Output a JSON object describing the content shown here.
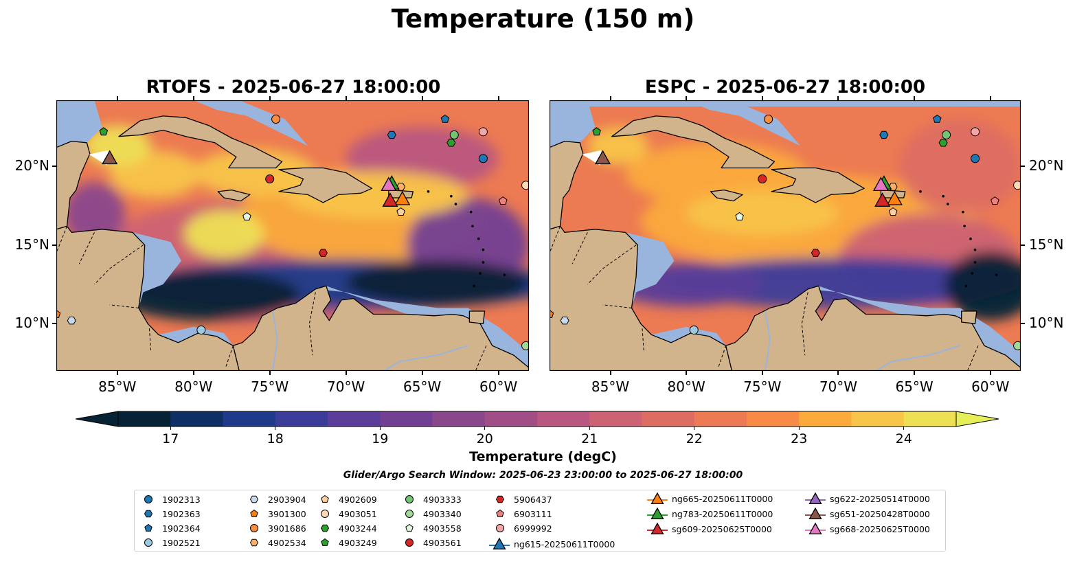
{
  "figure": {
    "title": "Temperature (150 m)",
    "search_window": "Glider/Argo Search Window: 2025-06-23 23:00:00 to 2025-06-27 18:00:00"
  },
  "panels": [
    {
      "title": "RTOFS - 2025-06-27 18:00:00"
    },
    {
      "title": "ESPC - 2025-06-27 18:00:00"
    }
  ],
  "axes": {
    "x_ticks": [
      "85°W",
      "80°W",
      "75°W",
      "70°W",
      "65°W",
      "60°W"
    ],
    "x_values": [
      -85,
      -80,
      -75,
      -70,
      -65,
      -60
    ],
    "y_ticks": [
      "20°N",
      "15°N",
      "10°N"
    ],
    "y_values": [
      20,
      15,
      10
    ],
    "lon_range": [
      -89,
      -58
    ],
    "lat_range": [
      7,
      24.2
    ]
  },
  "colorbar": {
    "label": "Temperature (degC)",
    "ticks": [
      "17",
      "18",
      "19",
      "20",
      "21",
      "22",
      "23",
      "24"
    ],
    "range": [
      16.5,
      24.5
    ],
    "extend": "both",
    "colors": [
      "#062235",
      "#0d2f63",
      "#1f3a8a",
      "#3b3c9a",
      "#5b3c99",
      "#733f93",
      "#8a478c",
      "#a14d86",
      "#b95780",
      "#cc6273",
      "#dd6d62",
      "#ec7a52",
      "#f78a45",
      "#fbaa3c",
      "#f8c449",
      "#eedf55"
    ]
  },
  "colors": {
    "land": "#d2b48c",
    "shelf": "#99b5de",
    "deep": "#0b2234",
    "warm": "#e6ef57"
  },
  "argo_floats": [
    {
      "id": "1902313",
      "marker": "circle",
      "color": "#1f77b4",
      "lon": -61,
      "lat": 20.5
    },
    {
      "id": "1902363",
      "marker": "hexagon",
      "color": "#1f77b4",
      "lon": -67,
      "lat": 22
    },
    {
      "id": "1902364",
      "marker": "pentagon",
      "color": "#1f77b4",
      "lon": -63.5,
      "lat": 23
    },
    {
      "id": "1902521",
      "marker": "circle",
      "color": "#9ecae1",
      "lon": -79.5,
      "lat": 9.6
    },
    {
      "id": "2903904",
      "marker": "hexagon",
      "color": "#c6dbef",
      "lon": -88,
      "lat": 10.2
    },
    {
      "id": "3901300",
      "marker": "pentagon",
      "color": "#ff7f0e",
      "lon": -89,
      "lat": 10.6
    },
    {
      "id": "3901686",
      "marker": "circle",
      "color": "#fd8d3c",
      "lon": -74.6,
      "lat": 23
    },
    {
      "id": "4902534",
      "marker": "hexagon",
      "color": "#fdae6b",
      "lon": -66.4,
      "lat": 18.7
    },
    {
      "id": "4902609",
      "marker": "pentagon",
      "color": "#fdd0a2",
      "lon": -66.4,
      "lat": 17.1
    },
    {
      "id": "4903051",
      "marker": "circle",
      "color": "#fdd9b5",
      "lon": -58.2,
      "lat": 18.8
    },
    {
      "id": "4903244",
      "marker": "hexagon",
      "color": "#2ca02c",
      "lon": -63.1,
      "lat": 21.5
    },
    {
      "id": "4903249",
      "marker": "pentagon",
      "color": "#2ca02c",
      "lon": -85.9,
      "lat": 22.2
    },
    {
      "id": "4903333",
      "marker": "circle",
      "color": "#74c476",
      "lon": -62.9,
      "lat": 22
    },
    {
      "id": "4903340",
      "marker": "circle",
      "color": "#a1d99b",
      "lon": -58.2,
      "lat": 8.6
    },
    {
      "id": "4903558",
      "marker": "pentagon",
      "color": "#e5f5e0",
      "lon": -76.5,
      "lat": 16.8
    },
    {
      "id": "4903561",
      "marker": "circle",
      "color": "#d62728",
      "lon": -75,
      "lat": 19.2
    },
    {
      "id": "5906437",
      "marker": "hexagon",
      "color": "#d62728",
      "lon": -71.5,
      "lat": 14.5
    },
    {
      "id": "6903111",
      "marker": "pentagon",
      "color": "#f08080",
      "lon": -59.7,
      "lat": 17.8
    },
    {
      "id": "6999992",
      "marker": "circle",
      "color": "#f4a6a6",
      "lon": -61,
      "lat": 22.2
    }
  ],
  "gliders": [
    {
      "id": "ng615-20250611T0000",
      "color": "#1f77b4",
      "lon": null,
      "lat": null
    },
    {
      "id": "ng665-20250611T0000",
      "color": "#ff7f0e",
      "lon": -66.3,
      "lat": 17.9
    },
    {
      "id": "ng783-20250611T0000",
      "color": "#2ca02c",
      "lon": -67,
      "lat": 18.9
    },
    {
      "id": "sg609-20250625T0000",
      "color": "#d62728",
      "lon": -67.1,
      "lat": 17.8
    },
    {
      "id": "sg622-20250514T0000",
      "color": "#9467bd",
      "lon": null,
      "lat": null
    },
    {
      "id": "sg651-20250428T0000",
      "color": "#8c564b",
      "lon": -85.5,
      "lat": 20.5
    },
    {
      "id": "sg668-20250625T0000",
      "color": "#e377c2",
      "lon": -67.2,
      "lat": 18.8
    }
  ]
}
